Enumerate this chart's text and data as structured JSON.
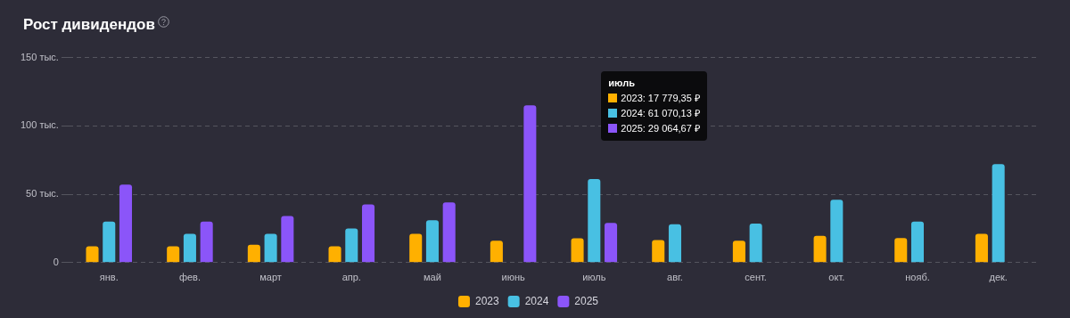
{
  "chart_data": {
    "type": "bar",
    "title": "Рост дивидендов",
    "categories": [
      "янв.",
      "фев.",
      "март",
      "апр.",
      "май",
      "июнь",
      "июль",
      "авг.",
      "сент.",
      "окт.",
      "нояб.",
      "дек."
    ],
    "series": [
      {
        "name": "2023",
        "color": "#ffb000",
        "values": [
          12,
          12,
          13,
          12,
          21,
          16,
          17.8,
          16.5,
          16,
          19.5,
          18,
          21
        ]
      },
      {
        "name": "2024",
        "color": "#48c0e3",
        "values": [
          30,
          21,
          21,
          25,
          31,
          null,
          61.1,
          28,
          28.5,
          46,
          30,
          72
        ]
      },
      {
        "name": "2025",
        "color": "#8b55f9",
        "values": [
          57,
          30,
          34,
          42.5,
          44,
          115,
          29.1,
          null,
          null,
          null,
          null,
          null
        ]
      }
    ],
    "ylim": [
      0,
      150
    ],
    "yticks": [
      0,
      {
        "value": 50,
        "label": "50 тыс."
      },
      {
        "value": 100,
        "label": "100 тыс."
      },
      {
        "value": 150,
        "label": "150 тыс."
      }
    ],
    "grid": "y",
    "legend": "bottom",
    "annotations": [
      "июль",
      "2023: 17 779,35 ₽",
      "2024: 61 070,13 ₽",
      "2025: 29 064,67 ₽"
    ]
  }
}
